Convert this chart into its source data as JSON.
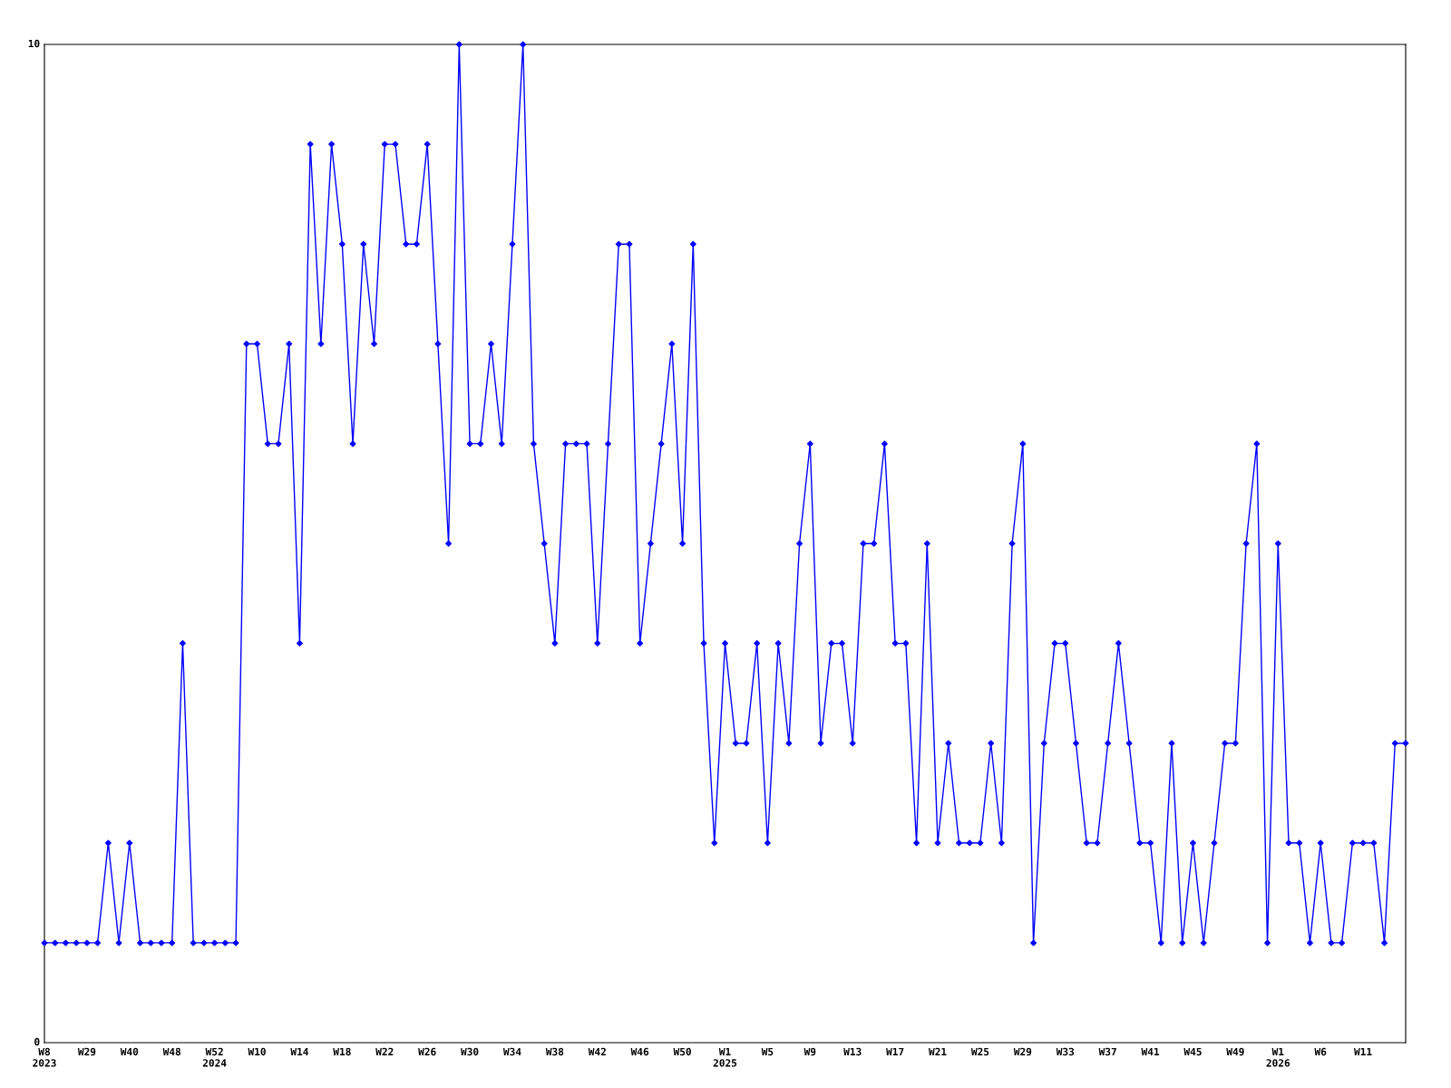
{
  "chart_data": {
    "type": "line",
    "categories": [
      "W8\n2023",
      null,
      null,
      null,
      "W29",
      null,
      null,
      null,
      "W40",
      null,
      null,
      null,
      "W48",
      null,
      null,
      null,
      "W52\n2024",
      null,
      null,
      null,
      "W10",
      null,
      null,
      null,
      "W14",
      null,
      null,
      null,
      "W18",
      null,
      null,
      null,
      "W22",
      null,
      null,
      null,
      "W26",
      null,
      null,
      null,
      "W30",
      null,
      null,
      null,
      "W34",
      null,
      null,
      null,
      "W38",
      null,
      null,
      null,
      "W42",
      null,
      null,
      null,
      "W46",
      null,
      null,
      null,
      "W50",
      null,
      null,
      null,
      "W1\n2025",
      null,
      null,
      null,
      "W5",
      null,
      null,
      null,
      "W9",
      null,
      null,
      null,
      "W13",
      null,
      null,
      null,
      "W17",
      null,
      null,
      null,
      "W21",
      null,
      null,
      null,
      "W25",
      null,
      null,
      null,
      "W29",
      null,
      null,
      null,
      "W33",
      null,
      null,
      null,
      "W37",
      null,
      null,
      null,
      "W41",
      null,
      null,
      null,
      "W45",
      null,
      null,
      null,
      "W49",
      null,
      null,
      null,
      "W1\n2026",
      null,
      null,
      null,
      "W6",
      null,
      null,
      null,
      "W11",
      null,
      null,
      null,
      null
    ],
    "series": [
      {
        "color": "#0000ff",
        "values": [
          1,
          1,
          1,
          1,
          1,
          1,
          2,
          1,
          2,
          1,
          1,
          1,
          1,
          4,
          1,
          1,
          1,
          1,
          1,
          7,
          7,
          6,
          6,
          7,
          4,
          9,
          7,
          9,
          8,
          6,
          8,
          7,
          9,
          9,
          8,
          8,
          9,
          7,
          5,
          10,
          6,
          6,
          7,
          6,
          8,
          10,
          6,
          5,
          4,
          6,
          6,
          6,
          4,
          6,
          8,
          8,
          4,
          5,
          6,
          7,
          5,
          8,
          4,
          2,
          4,
          3,
          3,
          4,
          2,
          4,
          3,
          5,
          6,
          3,
          4,
          4,
          3,
          5,
          5,
          6,
          4,
          4,
          2,
          5,
          2,
          3,
          2,
          2,
          2,
          3,
          2,
          5,
          6,
          1,
          3,
          4,
          4,
          3,
          2,
          2,
          3,
          4,
          3,
          2,
          2,
          1,
          3,
          1,
          2,
          1,
          2,
          3,
          3,
          5,
          6,
          1,
          5,
          2,
          2,
          1,
          2,
          1,
          1,
          2,
          2,
          2,
          1,
          3,
          3
        ]
      }
    ],
    "ylim": [
      0,
      10
    ],
    "yticks": [
      0,
      10
    ],
    "grid": false,
    "marker": "diamond",
    "line_style": "solid"
  }
}
